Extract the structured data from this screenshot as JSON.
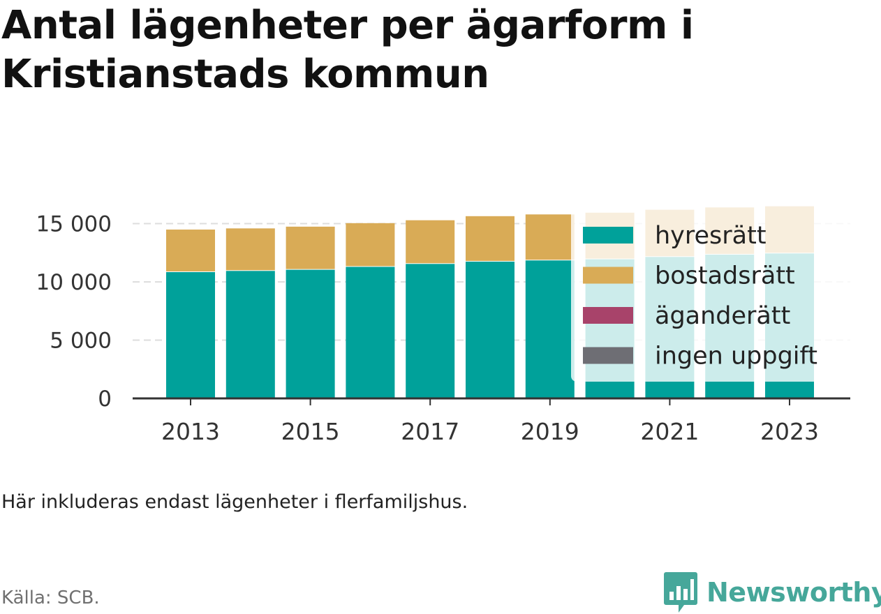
{
  "header": {
    "title": "Antal lägenheter per ägarform i Kristianstads kommun"
  },
  "footer": {
    "note": "Här inkluderas endast lägenheter i flerfamiljshus.",
    "source": "Källa: SCB.",
    "brand": "Newsworthy"
  },
  "colors": {
    "hyresratt": "#00a19a",
    "bostadsratt": "#d9ab56",
    "aganderatt": "#a8436a",
    "ingen_uppgift": "#6e6e74",
    "grid": "#dddddd",
    "axis": "#333333",
    "brand": "#46a79a"
  },
  "chart_data": {
    "type": "bar",
    "stacked": true,
    "categories": [
      "2013",
      "2014",
      "2015",
      "2016",
      "2017",
      "2018",
      "2019",
      "2020",
      "2021",
      "2022",
      "2023"
    ],
    "x_tick_labels": [
      "2013",
      "2015",
      "2017",
      "2019",
      "2021",
      "2023"
    ],
    "y_ticks": [
      0,
      5000,
      10000,
      15000
    ],
    "y_tick_labels": [
      "0",
      "5 000",
      "10 000",
      "15 000"
    ],
    "ylim": [
      0,
      16500
    ],
    "grid": true,
    "legend_position": "right",
    "series": [
      {
        "name": "hyresrätt",
        "color": "#00a19a",
        "values": [
          10900,
          11000,
          11100,
          11350,
          11600,
          11800,
          11900,
          12000,
          12200,
          12400,
          12500
        ]
      },
      {
        "name": "bostadsrätt",
        "color": "#d9ab56",
        "values": [
          3650,
          3650,
          3700,
          3750,
          3750,
          3900,
          3950,
          4000,
          4050,
          4050,
          4050
        ]
      },
      {
        "name": "äganderätt",
        "color": "#a8436a",
        "values": [
          0,
          0,
          0,
          0,
          0,
          0,
          0,
          0,
          0,
          0,
          0
        ]
      },
      {
        "name": "ingen uppgift",
        "color": "#6e6e74",
        "values": [
          0,
          0,
          0,
          0,
          0,
          0,
          0,
          0,
          0,
          0,
          0
        ]
      }
    ]
  }
}
